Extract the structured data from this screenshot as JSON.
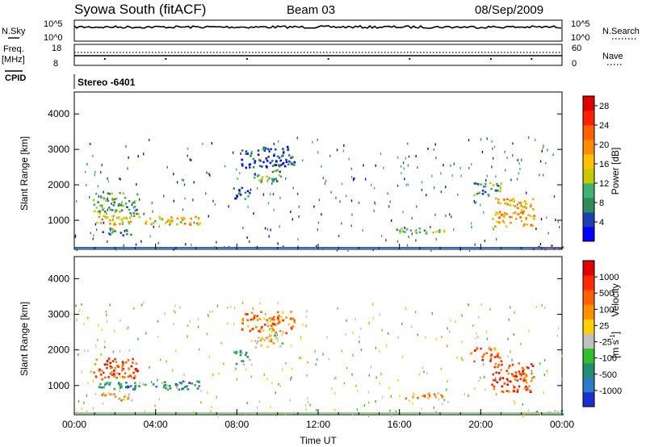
{
  "header": {
    "station": "Syowa South (fitACF)",
    "beam": "Beam 03",
    "date": "08/Sep/2009"
  },
  "strips": {
    "nsky_label": "N.Sky",
    "nsky_ticks": [
      "10^5",
      "10^0"
    ],
    "nsearch_label": "N.Search",
    "nsearch_ticks": [
      "10^5",
      "10^0"
    ],
    "freq_label": "Freq.",
    "freq_unit": "[MHz]",
    "freq_ticks": [
      "18",
      "8"
    ],
    "nave_label": "Nave",
    "nave_ticks": [
      "60",
      "0"
    ],
    "cpid_label": "CPID",
    "cpid_value": "Stereo -6401"
  },
  "colors": {
    "power_scale": [
      "#0000ff",
      "#1f3fb0",
      "#2e8b57",
      "#3cb371",
      "#c8c800",
      "#ffc000",
      "#ff8c00",
      "#ff6000",
      "#ff2000",
      "#e00000"
    ],
    "velocity_scale": [
      "#1a2fd0",
      "#2f7ac8",
      "#1f8f6f",
      "#2fbf2f",
      "#c0c0c0",
      "#ffd000",
      "#ff9000",
      "#ff6000",
      "#ff2a00",
      "#e00000"
    ]
  },
  "chart_data": [
    {
      "type": "heatmap",
      "name": "power-panel",
      "xlabel": "",
      "ylabel": "Slant Range [km]",
      "x_ticks": [
        "00:00",
        "04:00",
        "08:00",
        "12:00",
        "16:00",
        "20:00",
        "00:00"
      ],
      "y_ticks": [
        "1000",
        "2000",
        "3000",
        "4000"
      ],
      "xlim_hours": [
        0,
        24
      ],
      "ylim_km": [
        180,
        4620
      ],
      "colorbar": {
        "label": "Power [dB]",
        "ticks": [
          "4",
          "8",
          "12",
          "16",
          "20",
          "24",
          "28"
        ],
        "range": [
          0,
          30
        ]
      },
      "regions": [
        {
          "t0": 0.9,
          "t1": 3.1,
          "r0": 1200,
          "r1": 1800,
          "level": 0.35
        },
        {
          "t0": 1.0,
          "t1": 6.2,
          "r0": 900,
          "r1": 1150,
          "level": 0.55
        },
        {
          "t0": 1.3,
          "t1": 2.8,
          "r0": 600,
          "r1": 800,
          "level": 0.25
        },
        {
          "t0": 8.2,
          "t1": 10.8,
          "r0": 2500,
          "r1": 3100,
          "level": 0.15
        },
        {
          "t0": 8.8,
          "t1": 10.2,
          "r0": 2100,
          "r1": 2450,
          "level": 0.3
        },
        {
          "t0": 7.8,
          "t1": 8.6,
          "r0": 1600,
          "r1": 2000,
          "level": 0.15
        },
        {
          "t0": 15.8,
          "t1": 18.2,
          "r0": 650,
          "r1": 820,
          "level": 0.45
        },
        {
          "t0": 19.6,
          "t1": 21.0,
          "r0": 1700,
          "r1": 2100,
          "level": 0.3
        },
        {
          "t0": 20.5,
          "t1": 22.6,
          "r0": 850,
          "r1": 1650,
          "level": 0.6
        },
        {
          "t0": 22.5,
          "t1": 24.0,
          "r0": 200,
          "r1": 320,
          "level": 0.9
        }
      ]
    },
    {
      "type": "heatmap",
      "name": "velocity-panel",
      "xlabel": "Time UT",
      "ylabel": "Slant Range [km]",
      "x_ticks": [
        "00:00",
        "04:00",
        "08:00",
        "12:00",
        "16:00",
        "20:00",
        "00:00"
      ],
      "y_ticks": [
        "1000",
        "2000",
        "3000",
        "4000"
      ],
      "xlim_hours": [
        0,
        24
      ],
      "ylim_km": [
        180,
        4620
      ],
      "colorbar": {
        "label": "Velocity",
        "unit": "[m s",
        "unit_exp": "-1",
        "unit_close": "]",
        "ticks": [
          "1000",
          "500",
          "100",
          "25",
          "-25",
          "-100",
          "-500",
          "-1000"
        ],
        "range": [
          -1200,
          1200
        ]
      },
      "regions": [
        {
          "t0": 0.9,
          "t1": 3.1,
          "r0": 1200,
          "r1": 1800,
          "level": 0.78
        },
        {
          "t0": 1.0,
          "t1": 6.2,
          "r0": 900,
          "r1": 1150,
          "level": 0.25
        },
        {
          "t0": 1.3,
          "t1": 2.8,
          "r0": 600,
          "r1": 800,
          "level": 0.6
        },
        {
          "t0": 8.2,
          "t1": 10.8,
          "r0": 2500,
          "r1": 3100,
          "level": 0.7
        },
        {
          "t0": 8.8,
          "t1": 10.2,
          "r0": 2100,
          "r1": 2450,
          "level": 0.55
        },
        {
          "t0": 7.8,
          "t1": 8.6,
          "r0": 1600,
          "r1": 2000,
          "level": 0.3
        },
        {
          "t0": 15.8,
          "t1": 18.2,
          "r0": 650,
          "r1": 820,
          "level": 0.62
        },
        {
          "t0": 19.6,
          "t1": 21.0,
          "r0": 1700,
          "r1": 2100,
          "level": 0.75
        },
        {
          "t0": 20.5,
          "t1": 22.6,
          "r0": 850,
          "r1": 1650,
          "level": 0.82
        },
        {
          "t0": 22.5,
          "t1": 24.0,
          "r0": 200,
          "r1": 320,
          "level": 0.35
        }
      ]
    }
  ]
}
